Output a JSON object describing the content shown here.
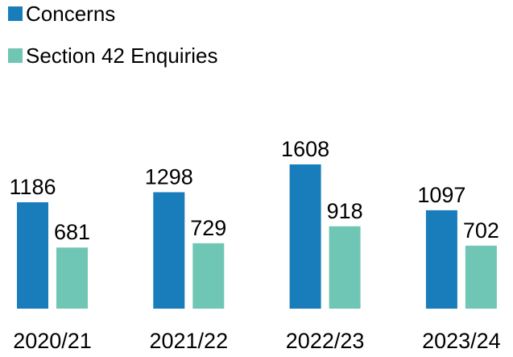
{
  "chart_data": {
    "type": "bar",
    "categories": [
      "2020/21",
      "2021/22",
      "2022/23",
      "2023/24"
    ],
    "series": [
      {
        "name": "Concerns",
        "color": "#1a7dbb",
        "values": [
          1186,
          1298,
          1608,
          1097
        ]
      },
      {
        "name": "Section 42 Enquiries",
        "color": "#6fc6b4",
        "values": [
          681,
          729,
          918,
          702
        ]
      }
    ]
  }
}
